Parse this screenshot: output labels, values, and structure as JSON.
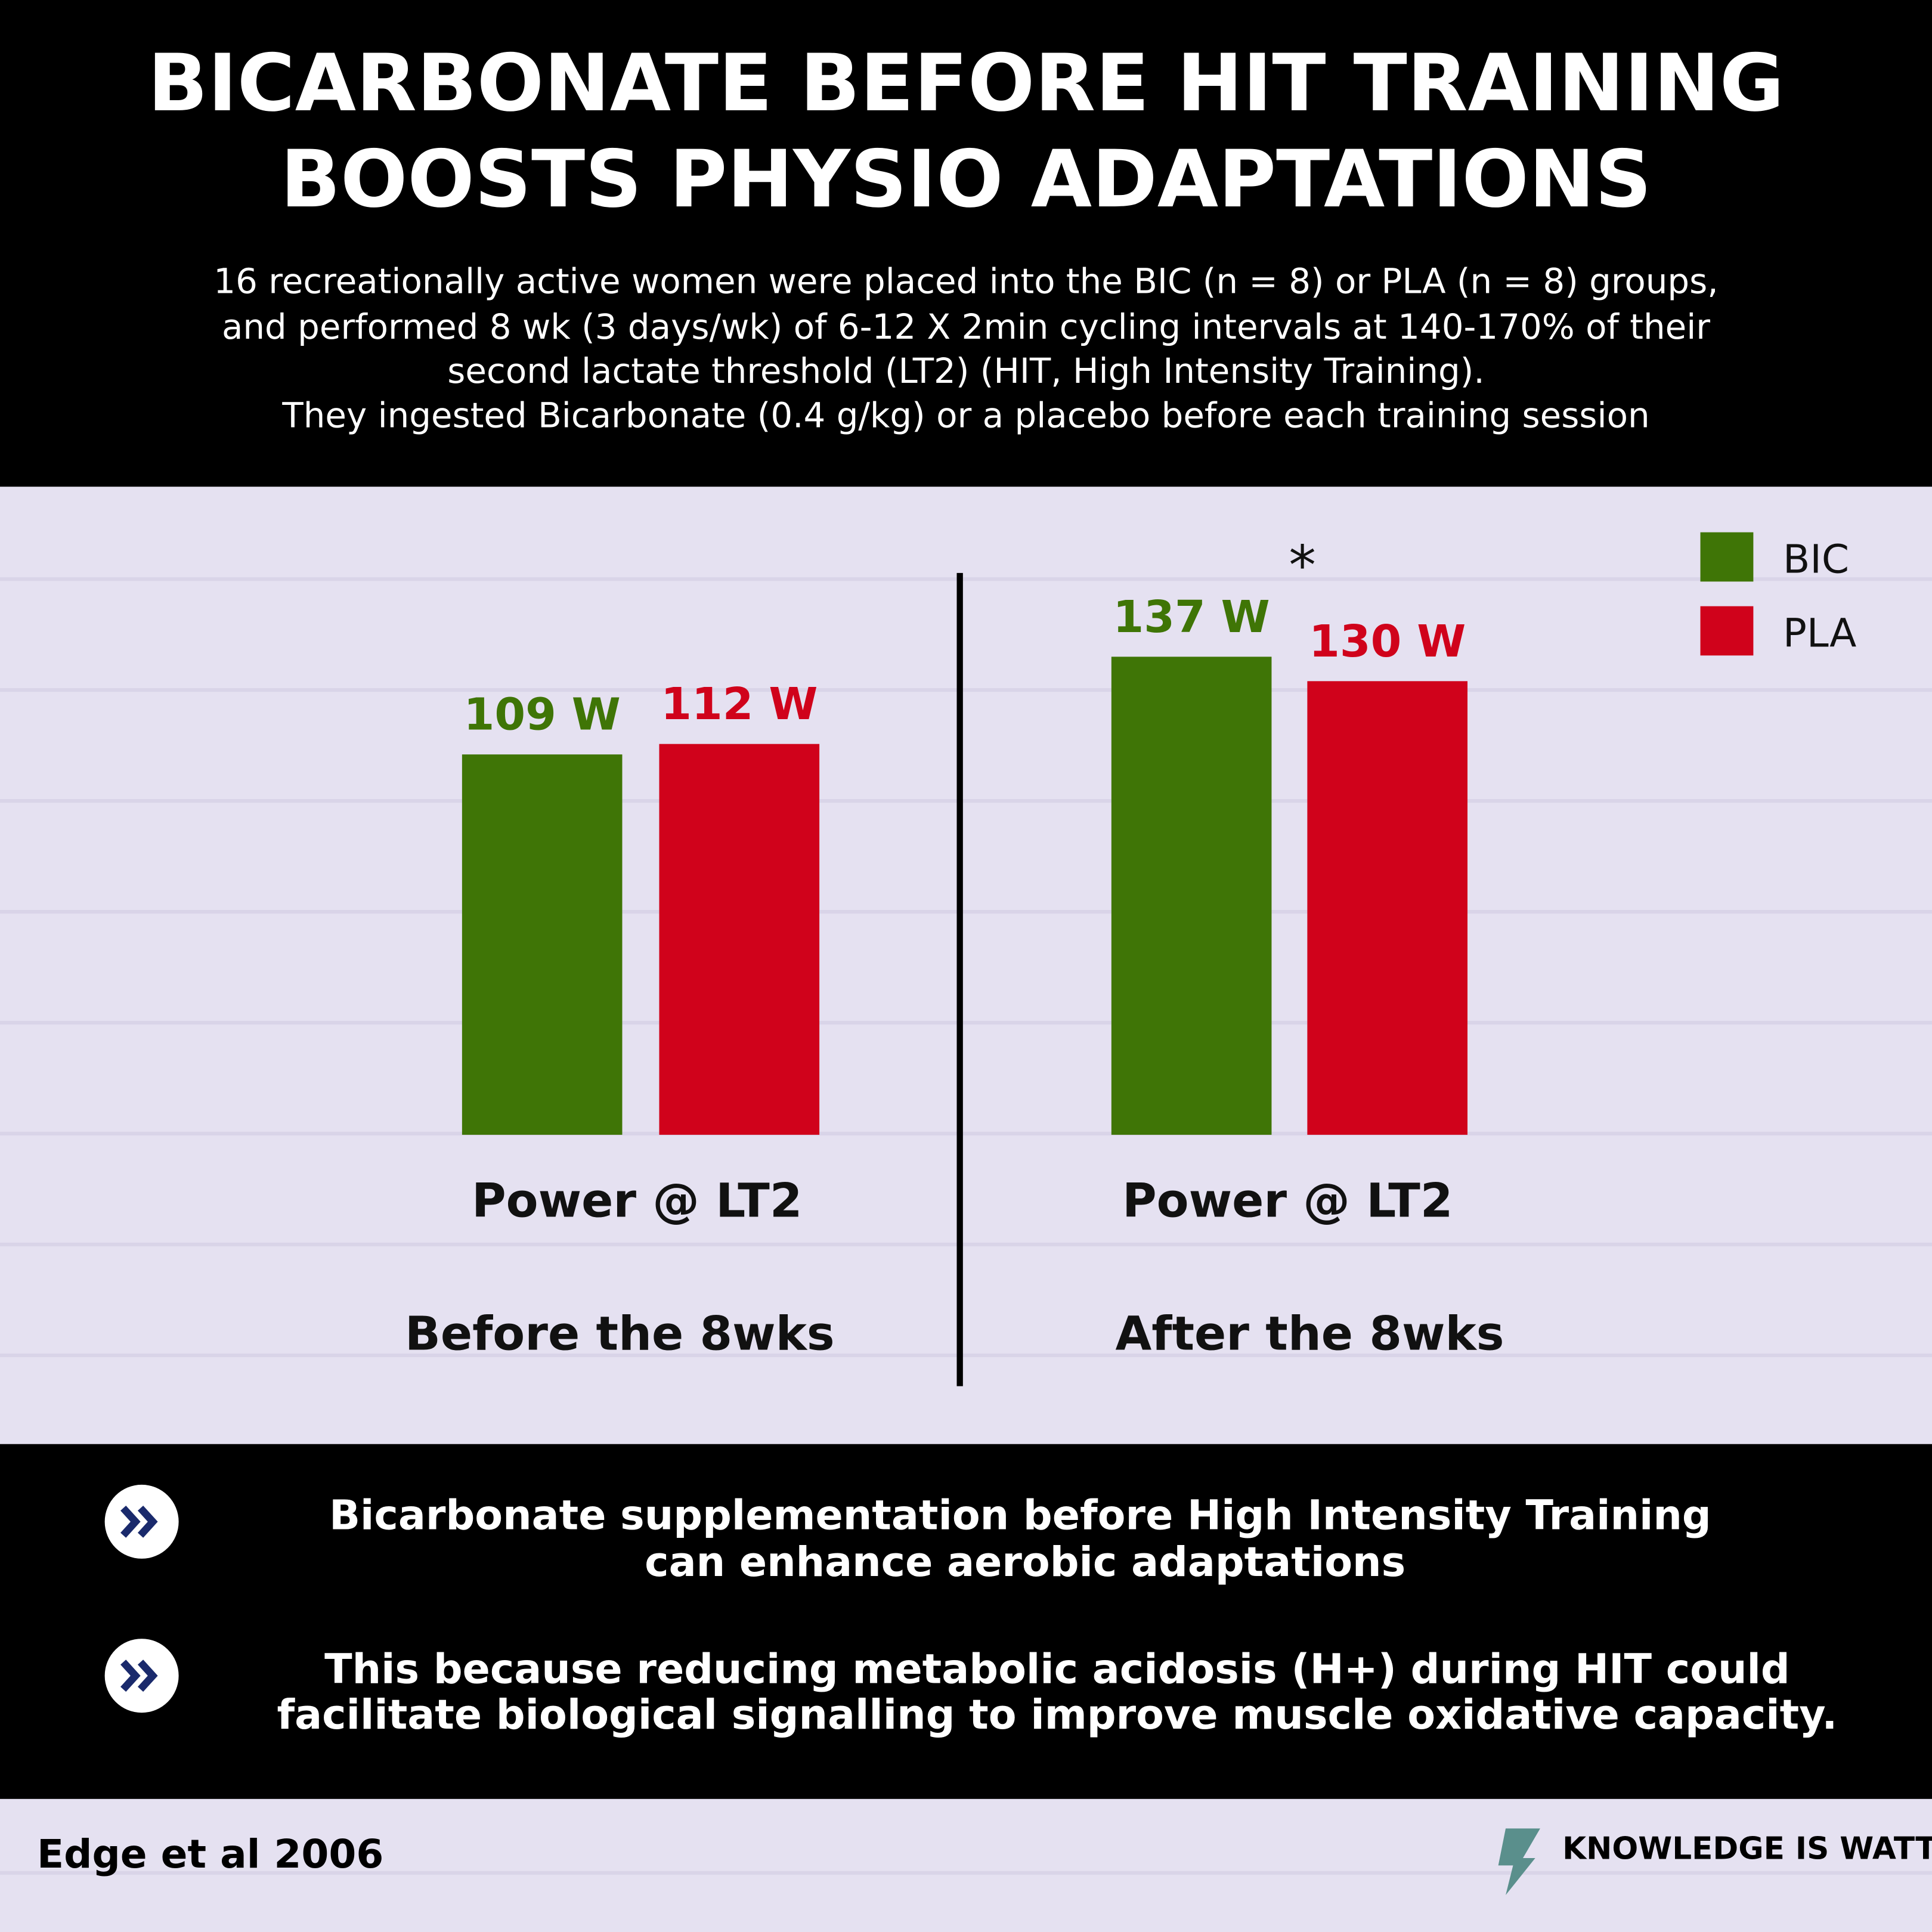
{
  "header": {
    "title": [
      "BICARBONATE BEFORE HIT TRAINING",
      "BOOSTS PHYSIO ADAPTATIONS"
    ],
    "subtitle": [
      "16 recreationally active women were placed into the BIC (n = 8) or PLA (n = 8) groups,",
      "and performed 8 wk (3 days/wk) of 6-12 X 2min cycling intervals at 140-170% of their",
      "second lactate threshold (LT2)  (HIT, High Intensity Training).",
      "They ingested Bicarbonate (0.4 g/kg) or a placebo before each training session"
    ]
  },
  "chart_data": {
    "type": "bar",
    "metric": "Power @ LT2",
    "categories": [
      "Before the 8wks",
      "After the 8wks"
    ],
    "series": [
      {
        "name": "BIC",
        "color": "#3f7506",
        "values": [
          109,
          137
        ],
        "value_labels": [
          "109 W",
          "137 W"
        ]
      },
      {
        "name": "PLA",
        "color": "#d0021b",
        "values": [
          112,
          130
        ],
        "value_labels": [
          "112 W",
          "130 W"
        ]
      }
    ],
    "annotation": "*",
    "legend": "top-right"
  },
  "takeaways": [
    [
      "Bicarbonate supplementation before High Intensity Training",
      "can enhance aerobic adaptations"
    ],
    [
      "This because reducing metabolic acidosis (H+) during HIT could",
      "facilitate biological signalling to improve  muscle oxidative capacity."
    ]
  ],
  "footer": {
    "citation": "Edge et al 2006",
    "brand": "KNOWLEDGE IS WATT"
  }
}
